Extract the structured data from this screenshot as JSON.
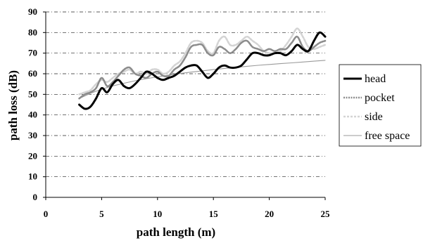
{
  "chart_data": {
    "type": "line",
    "title": "",
    "xlabel": "path length (m)",
    "ylabel": "path loss (dB)",
    "xlim": [
      0,
      25
    ],
    "ylim": [
      0,
      90
    ],
    "xticks": [
      "0",
      "5",
      "10",
      "15",
      "20",
      "25"
    ],
    "yticks": [
      "0",
      "10",
      "20",
      "30",
      "40",
      "50",
      "60",
      "70",
      "80",
      "90"
    ],
    "grid": "horizontal",
    "legend_position": "right",
    "series": [
      {
        "name": "head",
        "color": "#000000",
        "x": [
          3.0,
          3.5,
          4.0,
          4.5,
          5.0,
          5.5,
          6.0,
          6.5,
          7.0,
          7.5,
          8.0,
          8.5,
          9.0,
          9.5,
          10.0,
          10.5,
          11.0,
          11.5,
          12.0,
          12.5,
          13.0,
          13.5,
          14.0,
          14.5,
          15.0,
          15.5,
          16.0,
          16.5,
          17.0,
          17.5,
          18.0,
          18.5,
          19.0,
          19.5,
          20.0,
          20.5,
          21.0,
          21.5,
          22.0,
          22.5,
          23.0,
          23.5,
          24.0,
          24.5,
          25.0
        ],
        "values": [
          45,
          43,
          44,
          48,
          53,
          51,
          55,
          57,
          54,
          53,
          55,
          58,
          61,
          60,
          58,
          57,
          58,
          59,
          61,
          63,
          64,
          64,
          61,
          58,
          60,
          63,
          64,
          63,
          63,
          64,
          67,
          70,
          70,
          69,
          69,
          70,
          70,
          69,
          71,
          74,
          72,
          71,
          76,
          80,
          78
        ]
      },
      {
        "name": "pocket",
        "color": "#8c8c8c",
        "x": [
          3.0,
          3.5,
          4.0,
          4.5,
          5.0,
          5.5,
          6.0,
          6.5,
          7.0,
          7.5,
          8.0,
          8.5,
          9.0,
          9.5,
          10.0,
          10.5,
          11.0,
          11.5,
          12.0,
          12.5,
          13.0,
          13.5,
          14.0,
          14.5,
          15.0,
          15.5,
          16.0,
          16.5,
          17.0,
          17.5,
          18.0,
          18.5,
          19.0,
          19.5,
          20.0,
          20.5,
          21.0,
          21.5,
          22.0,
          22.5,
          23.0,
          23.5,
          24.0,
          24.5,
          25.0
        ],
        "values": [
          48,
          50,
          51,
          53,
          58,
          54,
          56,
          59,
          62,
          63,
          60,
          59,
          58,
          60,
          61,
          59,
          59,
          62,
          64,
          68,
          73,
          74,
          74,
          70,
          69,
          73,
          72,
          70,
          72,
          75,
          76,
          73,
          72,
          71,
          72,
          71,
          72,
          72,
          75,
          78,
          73,
          71,
          73,
          75,
          76
        ]
      },
      {
        "name": "side",
        "color": "#d4d4d4",
        "x": [
          3.0,
          3.5,
          4.0,
          4.5,
          5.0,
          5.5,
          6.0,
          6.5,
          7.0,
          7.5,
          8.0,
          8.5,
          9.0,
          9.5,
          10.0,
          10.5,
          11.0,
          11.5,
          12.0,
          12.5,
          13.0,
          13.5,
          14.0,
          14.5,
          15.0,
          15.5,
          16.0,
          16.5,
          17.0,
          17.5,
          18.0,
          18.5,
          19.0,
          19.5,
          20.0,
          20.5,
          21.0,
          21.5,
          22.0,
          22.5,
          23.0,
          23.5,
          24.0,
          24.5,
          25.0
        ],
        "values": [
          50,
          51,
          52,
          55,
          57,
          56,
          58,
          60,
          61,
          62,
          60,
          61,
          60,
          62,
          62,
          60,
          61,
          64,
          66,
          70,
          75,
          76,
          75,
          71,
          70,
          76,
          78,
          74,
          74,
          76,
          78,
          76,
          74,
          71,
          70,
          70,
          71,
          74,
          78,
          82,
          78,
          73,
          72,
          73,
          74
        ]
      },
      {
        "name": "free space",
        "color": "#9a9a9a",
        "x": [
          3,
          4,
          5,
          6,
          7,
          8,
          9,
          10,
          11,
          12,
          13,
          14,
          15,
          16,
          17,
          18,
          19,
          20,
          21,
          22,
          23,
          24,
          25
        ],
        "values": [
          48.0,
          50.5,
          52.5,
          54.1,
          55.4,
          56.6,
          57.6,
          58.5,
          59.3,
          60.1,
          60.8,
          61.4,
          62.0,
          62.6,
          63.1,
          63.6,
          64.1,
          64.5,
          64.9,
          65.3,
          65.7,
          66.1,
          66.5
        ]
      }
    ]
  }
}
